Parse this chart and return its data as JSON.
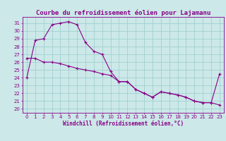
{
  "title": "Courbe du refroidissement éolien pour Lajamanu",
  "xlabel": "Windchill (Refroidissement éolien,°C)",
  "bg_color": "#cce8e8",
  "line_color": "#880088",
  "grid_color": "#99cccc",
  "xlim": [
    -0.5,
    23.5
  ],
  "ylim": [
    19.5,
    31.8
  ],
  "yticks": [
    20,
    21,
    22,
    23,
    24,
    25,
    26,
    27,
    28,
    29,
    30,
    31
  ],
  "xticks": [
    0,
    1,
    2,
    3,
    4,
    5,
    6,
    7,
    8,
    9,
    10,
    11,
    12,
    13,
    14,
    15,
    16,
    17,
    18,
    19,
    20,
    21,
    22,
    23
  ],
  "upper_line": [
    [
      0,
      24.0
    ],
    [
      1,
      28.8
    ],
    [
      2,
      29.0
    ],
    [
      3,
      30.8
    ],
    [
      4,
      31.0
    ],
    [
      5,
      31.2
    ],
    [
      6,
      30.8
    ],
    [
      7,
      28.5
    ],
    [
      8,
      27.4
    ],
    [
      9,
      27.0
    ],
    [
      10,
      24.8
    ],
    [
      11,
      23.5
    ],
    [
      12,
      23.5
    ],
    [
      13,
      22.5
    ],
    [
      14,
      22.0
    ],
    [
      15,
      21.5
    ],
    [
      16,
      22.2
    ],
    [
      17,
      22.0
    ],
    [
      18,
      21.8
    ],
    [
      19,
      21.5
    ],
    [
      20,
      21.0
    ],
    [
      21,
      20.8
    ],
    [
      22,
      20.8
    ],
    [
      23,
      24.5
    ]
  ],
  "lower_line": [
    [
      0,
      26.5
    ],
    [
      1,
      26.5
    ],
    [
      2,
      26.0
    ],
    [
      3,
      26.0
    ],
    [
      4,
      25.8
    ],
    [
      5,
      25.5
    ],
    [
      6,
      25.2
    ],
    [
      7,
      25.0
    ],
    [
      8,
      24.8
    ],
    [
      9,
      24.5
    ],
    [
      10,
      24.3
    ],
    [
      11,
      23.5
    ],
    [
      12,
      23.5
    ],
    [
      13,
      22.5
    ],
    [
      14,
      22.0
    ],
    [
      15,
      21.5
    ],
    [
      16,
      22.2
    ],
    [
      17,
      22.0
    ],
    [
      18,
      21.8
    ],
    [
      19,
      21.5
    ],
    [
      20,
      21.0
    ],
    [
      21,
      20.8
    ],
    [
      22,
      20.8
    ],
    [
      23,
      20.5
    ]
  ],
  "title_fontsize": 6.5,
  "axis_fontsize": 5.5,
  "tick_fontsize": 5.0
}
